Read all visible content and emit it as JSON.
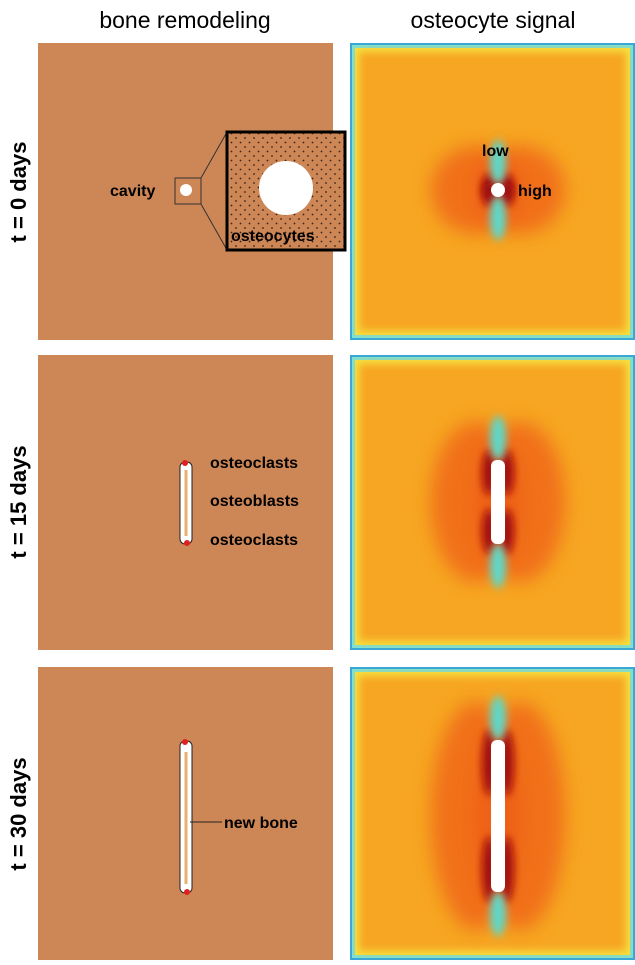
{
  "columns": [
    "bone remodeling",
    "osteocyte signal"
  ],
  "rows": [
    {
      "label": "t = 0 days",
      "left_labels": [
        "cavity",
        "osteocytes"
      ],
      "right_labels": [
        "low",
        "high"
      ]
    },
    {
      "label": "t = 15 days",
      "left_labels": [
        "osteoclasts",
        "osteoblasts",
        "osteoclasts"
      ]
    },
    {
      "label": "t = 30 days",
      "left_labels": [
        "new bone"
      ]
    }
  ]
}
